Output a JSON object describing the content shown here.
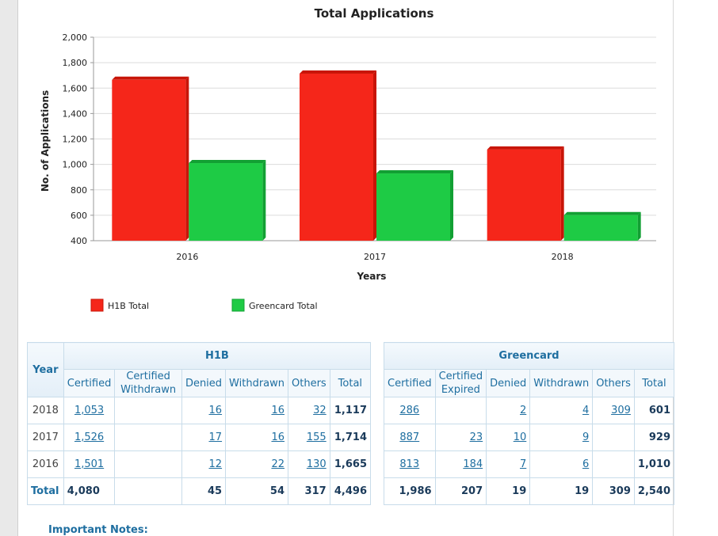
{
  "chart_data": {
    "type": "bar",
    "title": "Total Applications",
    "xlabel": "Years",
    "ylabel": "No. of Applications",
    "categories": [
      "2016",
      "2017",
      "2018"
    ],
    "series": [
      {
        "name": "H1B Total",
        "values": [
          1665,
          1714,
          1117
        ],
        "color": "#f5261a"
      },
      {
        "name": "Greencard Total",
        "values": [
          1010,
          929,
          601
        ],
        "color": "#1ecb45"
      }
    ],
    "ylim": [
      400,
      2000
    ],
    "yticks": [
      "400",
      "600",
      "800",
      "1,000",
      "1,200",
      "1,400",
      "1,600",
      "1,800",
      "2,000"
    ],
    "grid": true,
    "legend": "bottom-left"
  },
  "h1b_table": {
    "year_header": "Year",
    "group_title": "H1B",
    "columns": [
      "Certified",
      "Certified Withdrawn",
      "Denied",
      "Withdrawn",
      "Others",
      "Total"
    ],
    "rows": [
      {
        "year": "2018",
        "certified": "1,053",
        "cert_withdrawn": "",
        "denied": "16",
        "withdrawn": "16",
        "others": "32",
        "total": "1,117"
      },
      {
        "year": "2017",
        "certified": "1,526",
        "cert_withdrawn": "",
        "denied": "17",
        "withdrawn": "16",
        "others": "155",
        "total": "1,714"
      },
      {
        "year": "2016",
        "certified": "1,501",
        "cert_withdrawn": "",
        "denied": "12",
        "withdrawn": "22",
        "others": "130",
        "total": "1,665"
      }
    ],
    "total_row": {
      "label": "Total",
      "certified": "4,080",
      "cert_withdrawn": "",
      "denied": "45",
      "withdrawn": "54",
      "others": "317",
      "total": "4,496"
    }
  },
  "gc_table": {
    "group_title": "Greencard",
    "columns": [
      "Certified",
      "Certified Expired",
      "Denied",
      "Withdrawn",
      "Others",
      "Total"
    ],
    "rows": [
      {
        "certified": "286",
        "cert_expired": "",
        "denied": "2",
        "withdrawn": "4",
        "others": "309",
        "total": "601"
      },
      {
        "certified": "887",
        "cert_expired": "23",
        "denied": "10",
        "withdrawn": "9",
        "others": "",
        "total": "929"
      },
      {
        "certified": "813",
        "cert_expired": "184",
        "denied": "7",
        "withdrawn": "6",
        "others": "",
        "total": "1,010"
      }
    ],
    "total_row": {
      "certified": "1,986",
      "cert_expired": "207",
      "denied": "19",
      "withdrawn": "19",
      "others": "309",
      "total": "2,540"
    }
  },
  "notes_heading": "Important Notes:"
}
